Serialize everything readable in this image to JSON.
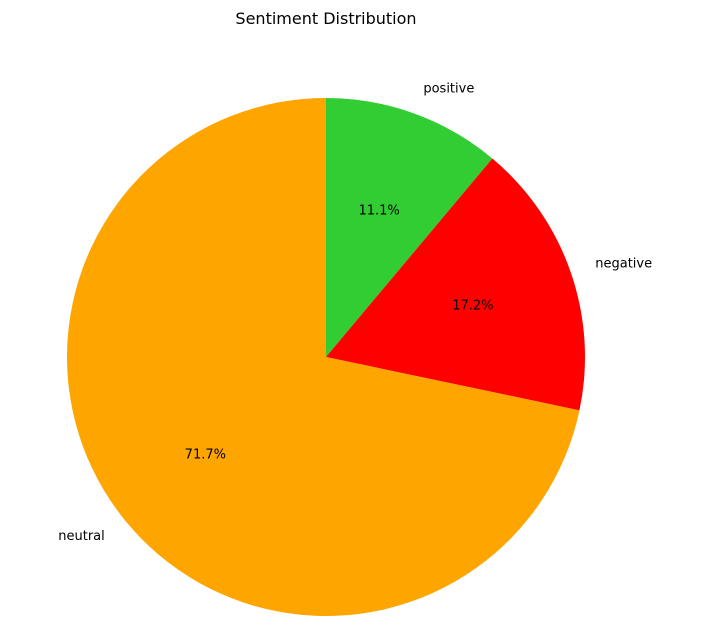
{
  "chart_data": {
    "type": "pie",
    "title": "Sentiment Distribution",
    "start_angle_deg": 90,
    "direction": "clockwise",
    "slices": [
      {
        "label": "positive",
        "value": 11.1,
        "pct_label": "11.1%",
        "color": "#32cd32"
      },
      {
        "label": "negative",
        "value": 17.2,
        "pct_label": "17.2%",
        "color": "#ff0000"
      },
      {
        "label": "neutral",
        "value": 71.7,
        "pct_label": "71.7%",
        "color": "#ffa500"
      }
    ]
  }
}
